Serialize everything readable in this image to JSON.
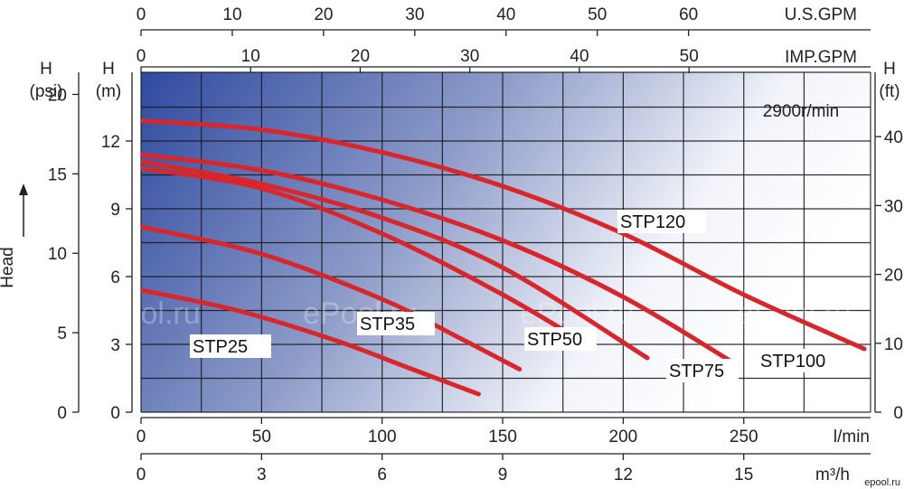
{
  "chart_data": {
    "type": "line",
    "annotation": "2900r/min",
    "xlabel": "l/min",
    "ylabel": "Head",
    "xlim": [
      0,
      300
    ],
    "ylim": [
      0,
      15
    ],
    "grid": true,
    "curve_color": "#d9262b",
    "axes": {
      "top_usgpm": {
        "unit": "U.S.GPM",
        "ticks": [
          "0",
          "10",
          "20",
          "30",
          "40",
          "50",
          "60"
        ],
        "values": [
          0,
          10,
          20,
          30,
          40,
          50,
          60
        ],
        "factor": 3.785
      },
      "top_impgpm": {
        "unit": "IMP.GPM",
        "ticks": [
          "0",
          "10",
          "20",
          "30",
          "40",
          "50"
        ],
        "values": [
          0,
          10,
          20,
          30,
          40,
          50
        ],
        "factor": 4.546
      },
      "bottom_lmin": {
        "unit": "l/min",
        "ticks": [
          "0",
          "50",
          "100",
          "150",
          "200",
          "250"
        ],
        "values": [
          0,
          50,
          100,
          150,
          200,
          250
        ]
      },
      "bottom_m3h": {
        "unit": "m³/h",
        "ticks": [
          "0",
          "3",
          "6",
          "9",
          "12",
          "15"
        ],
        "values": [
          0,
          3,
          6,
          9,
          12,
          15
        ]
      },
      "left_m": {
        "unit_line1": "H",
        "unit_line2": "(m)",
        "ticks": [
          "0",
          "3",
          "6",
          "9",
          "12"
        ],
        "values": [
          0,
          3,
          6,
          9,
          12
        ]
      },
      "left_psi": {
        "unit_line1": "H",
        "unit_line2": "(psi)",
        "ticks": [
          "0",
          "5",
          "10",
          "15",
          "20"
        ],
        "values": [
          0,
          5,
          10,
          15,
          20
        ],
        "factor": 0.7031
      },
      "right_ft": {
        "unit_line1": "H",
        "unit_line2": "(ft)",
        "ticks": [
          "0",
          "10",
          "20",
          "30",
          "40"
        ],
        "values": [
          0,
          10,
          20,
          30,
          40
        ],
        "factor": 0.3048
      }
    },
    "series": [
      {
        "name": "STP25",
        "x": [
          0,
          40,
          80,
          110,
          140
        ],
        "y": [
          5.4,
          4.5,
          3.2,
          2.0,
          0.8
        ]
      },
      {
        "name": "STP35",
        "x": [
          0,
          50,
          100,
          130,
          157
        ],
        "y": [
          8.2,
          7.0,
          5.0,
          3.4,
          1.9
        ]
      },
      {
        "name": "STP50",
        "x": [
          0,
          50,
          100,
          150,
          185
        ],
        "y": [
          10.8,
          9.9,
          7.9,
          5.2,
          3.0
        ]
      },
      {
        "name": "STP75",
        "x": [
          0,
          50,
          100,
          150,
          210
        ],
        "y": [
          11.1,
          10.1,
          8.6,
          6.4,
          2.4
        ]
      },
      {
        "name": "STP100",
        "x": [
          0,
          50,
          100,
          150,
          200,
          247
        ],
        "y": [
          11.4,
          10.7,
          9.4,
          7.6,
          5.1,
          2.1
        ]
      },
      {
        "name": "STP120",
        "x": [
          0,
          50,
          100,
          150,
          200,
          250,
          300
        ],
        "y": [
          12.9,
          12.5,
          11.5,
          10.0,
          7.9,
          5.2,
          2.8
        ]
      }
    ],
    "curve_labels": [
      "STP25",
      "STP35",
      "STP50",
      "STP75",
      "STP100",
      "STP120"
    ]
  },
  "watermark": "ePool.ru",
  "corner_mark": "epool.ru"
}
